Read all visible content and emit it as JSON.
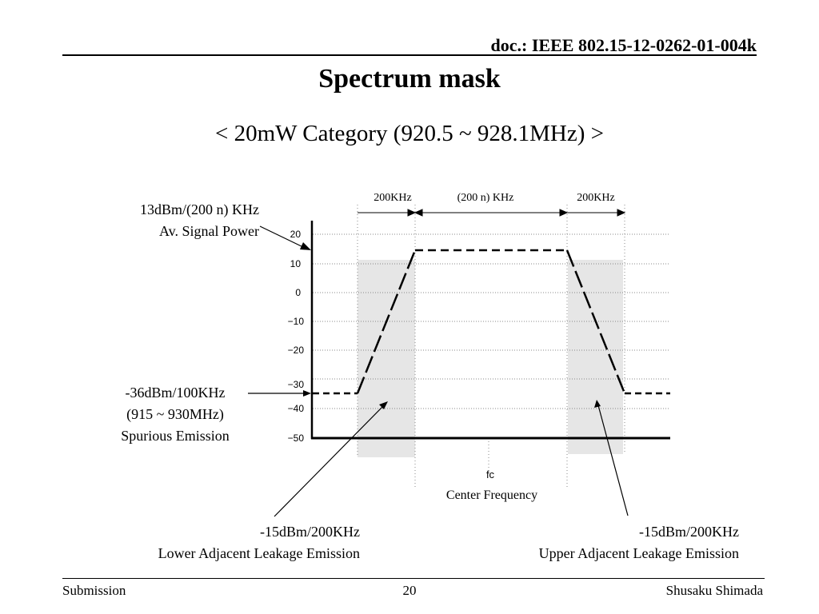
{
  "header": {
    "doc_id": "doc.: IEEE 802.15-12-0262-01-004k",
    "title": "Spectrum mask",
    "subtitle": "< 20mW Category (920.5 ~ 928.1MHz) >"
  },
  "footer": {
    "left": "Submission",
    "page": "20",
    "right": "Shusaku Shimada"
  },
  "diagram": {
    "y_ticks": [
      "20",
      "10",
      "0",
      "−10",
      "−20",
      "−30",
      "−40",
      "−50"
    ],
    "band_labels": [
      "200KHz",
      "(200 n) KHz",
      "200KHz"
    ],
    "fc_label": "fc",
    "center_label": "Center Frequency",
    "signal_power": {
      "line1": "13dBm/(200 n) KHz",
      "line2": "Av. Signal Power"
    },
    "spurious": {
      "line1": "-36dBm/100KHz",
      "line2": "(915 ~ 930MHz)",
      "line3": "Spurious Emission"
    },
    "lower_leakage": {
      "line1": "-15dBm/200KHz",
      "line2": "Lower Adjacent Leakage Emission"
    },
    "upper_leakage": {
      "line1": "-15dBm/200KHz",
      "line2": "Upper Adjacent Leakage Emission"
    },
    "colors": {
      "shade": "#e6e6e6",
      "line": "#000000",
      "grid": "#888888"
    }
  }
}
